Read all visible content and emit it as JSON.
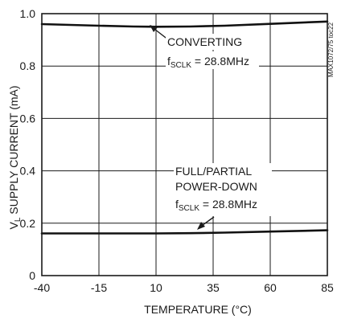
{
  "chart_data": {
    "type": "line",
    "xlabel": "TEMPERATURE (°C)",
    "ylabel": "V_L SUPPLY CURRENT (mA)",
    "ylabel_main": "V",
    "ylabel_sub": "L",
    "ylabel_rest": " SUPPLY CURRENT (mA)",
    "xlim": [
      -40,
      85
    ],
    "ylim": [
      0,
      1.0
    ],
    "x_ticks": [
      -40,
      -15,
      10,
      35,
      60,
      85
    ],
    "x_tick_labels": [
      "-40",
      "-15",
      "10",
      "35",
      "60",
      "85"
    ],
    "y_ticks": [
      0,
      0.2,
      0.4,
      0.6,
      0.8,
      1.0
    ],
    "y_tick_labels": [
      "0",
      "0.2",
      "0.4",
      "0.6",
      "0.8",
      "1.0"
    ],
    "grid": true,
    "series": [
      {
        "x": [
          -40,
          -15,
          0,
          10,
          25,
          40,
          60,
          85
        ],
        "y": [
          0.96,
          0.954,
          0.951,
          0.95,
          0.951,
          0.954,
          0.961,
          0.97
        ]
      },
      {
        "x": [
          -40,
          -15,
          10,
          25,
          40,
          60,
          85
        ],
        "y": [
          0.161,
          0.161,
          0.161,
          0.162,
          0.164,
          0.168,
          0.173
        ]
      }
    ],
    "annotations": [
      {
        "text": "CONVERTING"
      },
      {
        "text": "fSCLK = 28.8MHz",
        "main": "f",
        "sub": "SCLK",
        "rest": " = 28.8MHz"
      },
      {
        "text": "FULL/PARTIAL"
      },
      {
        "text": "POWER-DOWN"
      },
      {
        "text": "fSCLK = 28.8MHz",
        "main": "f",
        "sub": "SCLK",
        "rest": " = 28.8MHz"
      }
    ],
    "watermark": "MAX1072/75 toc22"
  }
}
